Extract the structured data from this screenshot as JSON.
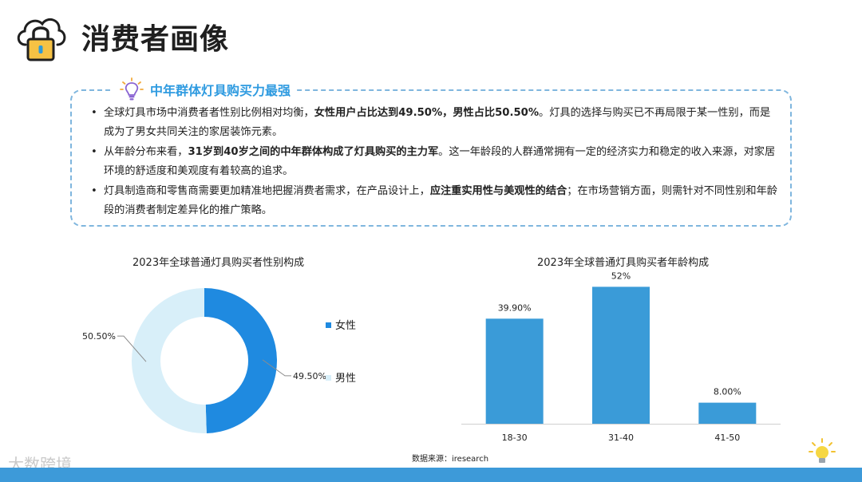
{
  "page": {
    "title": "消费者画像",
    "icons": {
      "logo": "cloud-lock-icon",
      "tip": "lightbulb-icon",
      "corner": "lightbulb-icon"
    },
    "colors": {
      "accent": "#2f9be0",
      "dark_blue": "#1f8ae0",
      "light_blue": "#d8eff9",
      "bar": "#3a9bd8",
      "footer": "#3d9ad9"
    }
  },
  "summary": {
    "heading": "中年群体灯具购买力最强",
    "bullets": [
      {
        "segments": [
          {
            "text": "全球灯具市场中消费者者性别比例相对均衡，",
            "bold": false
          },
          {
            "text": "女性用户占比达到49.50%，男性占比50.50%",
            "bold": true
          },
          {
            "text": "。灯具的选择与购买已不再局限于某一性别，而是成为了男女共同关注的家居装饰元素。",
            "bold": false
          }
        ]
      },
      {
        "segments": [
          {
            "text": "从年龄分布来看，",
            "bold": false
          },
          {
            "text": "31岁到40岁之间的中年群体构成了灯具购买的主力军",
            "bold": true
          },
          {
            "text": "。这一年龄段的人群通常拥有一定的经济实力和稳定的收入来源，对家居环境的舒适度和美观度有着较高的追求。",
            "bold": false
          }
        ]
      },
      {
        "segments": [
          {
            "text": "灯具制造商和零售商需要更加精准地把握消费者需求，在产品设计上，",
            "bold": false
          },
          {
            "text": "应注重实用性与美观性的结合",
            "bold": true
          },
          {
            "text": "；在市场营销方面，则需针对不同性别和年龄段的消费者制定差异化的推广策略。",
            "bold": false
          }
        ]
      }
    ]
  },
  "chart_data": [
    {
      "type": "pie",
      "donut": true,
      "title": "2023年全球普通灯具购买者性别构成",
      "labels": [
        "女性",
        "男性"
      ],
      "values": [
        49.5,
        50.5
      ],
      "data_labels": [
        "49.50%",
        "50.50%"
      ],
      "colors": [
        "#1f8ae0",
        "#d8eff9"
      ],
      "legend": "right"
    },
    {
      "type": "bar",
      "title": "2023年全球普通灯具购买者年龄构成",
      "categories": [
        "18-30",
        "31-40",
        "41-50"
      ],
      "values": [
        39.9,
        52,
        8.0
      ],
      "data_labels": [
        "39.90%",
        "52%",
        "8.00%"
      ],
      "ylim": [
        0,
        60
      ],
      "color": "#3a9bd8",
      "grid": false,
      "xlabel": "",
      "ylabel": ""
    }
  ],
  "footer": {
    "source": "数据来源：iresearch",
    "watermark": "大数跨境"
  }
}
